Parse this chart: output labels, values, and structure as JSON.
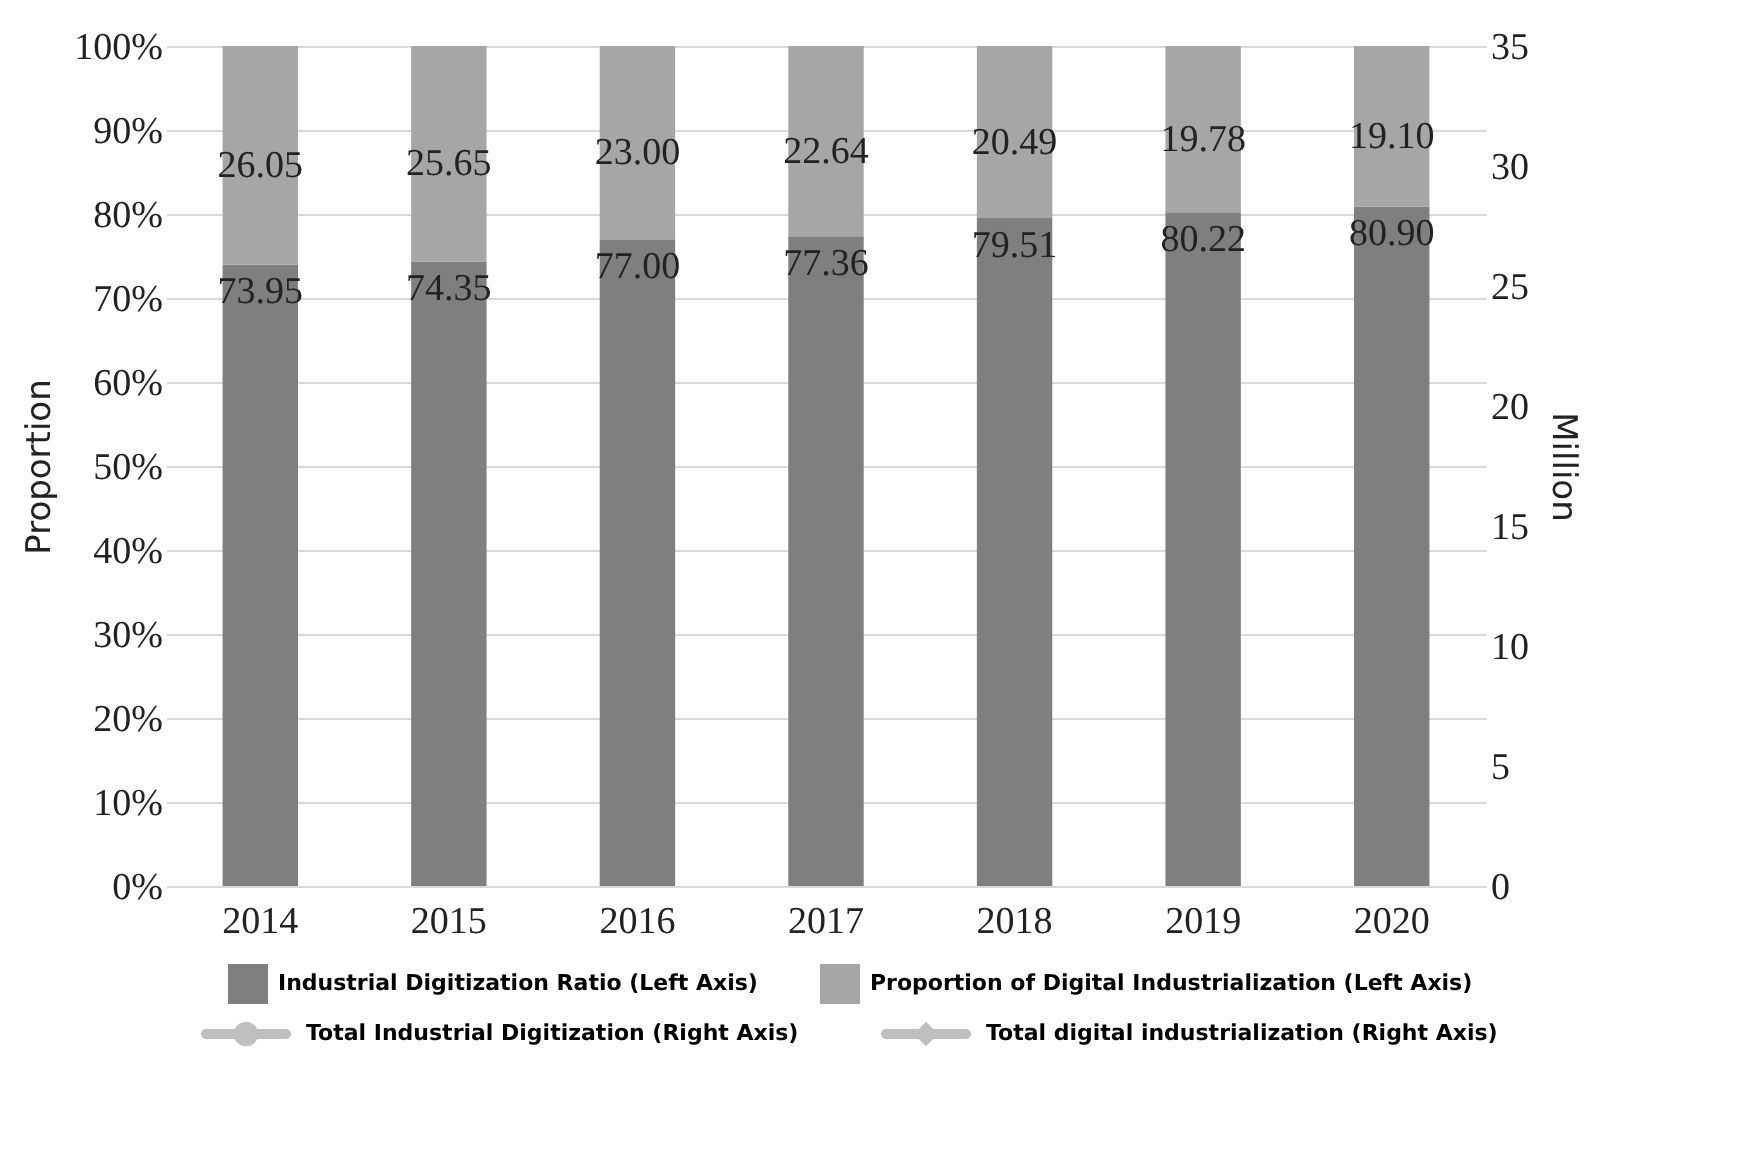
{
  "chart_data": {
    "type": "bar",
    "stacked": true,
    "ylabel": "Proportion",
    "y2label": "Million",
    "categories": [
      "2014",
      "2015",
      "2016",
      "2017",
      "2018",
      "2019",
      "2020"
    ],
    "series": [
      {
        "name": "Industrial Digitization Ratio (Left Axis)",
        "color": "#7f7f7f",
        "values": [
          73.95,
          74.35,
          77.0,
          77.36,
          79.51,
          80.22,
          80.9
        ],
        "value_labels": [
          "73.95",
          "74.35",
          "77.00",
          "77.36",
          "79.51",
          "80.22",
          "80.90"
        ]
      },
      {
        "name": "Proportion of Digital Industrialization (Left Axis)",
        "color": "#a6a6a6",
        "values": [
          26.05,
          25.65,
          23.0,
          22.64,
          20.49,
          19.78,
          19.1
        ],
        "value_labels": [
          "26.05",
          "25.65",
          "23.00",
          "22.64",
          "20.49",
          "19.78",
          "19.10"
        ]
      },
      {
        "name": "Total Industrial Digitization (Right Axis)",
        "type": "line",
        "axis": "y2",
        "color": "#bfbfbf",
        "marker": "circle",
        "values": [
          null,
          null,
          null,
          null,
          null,
          null,
          null
        ]
      },
      {
        "name": "Total digital industrialization (Right Axis)",
        "type": "line",
        "axis": "y2",
        "color": "#bfbfbf",
        "marker": "diamond",
        "values": [
          null,
          null,
          null,
          null,
          null,
          null,
          null
        ]
      }
    ],
    "ylim": [
      0,
      100
    ],
    "yticks": [
      {
        "value": 0,
        "label": "0%"
      },
      {
        "value": 10,
        "label": "10%"
      },
      {
        "value": 20,
        "label": "20%"
      },
      {
        "value": 30,
        "label": "30%"
      },
      {
        "value": 40,
        "label": "40%"
      },
      {
        "value": 50,
        "label": "50%"
      },
      {
        "value": 60,
        "label": "60%"
      },
      {
        "value": 70,
        "label": "70%"
      },
      {
        "value": 80,
        "label": "80%"
      },
      {
        "value": 90,
        "label": "90%"
      },
      {
        "value": 100,
        "label": "100%"
      }
    ],
    "y2lim": [
      0,
      35
    ],
    "y2ticks": [
      0,
      5,
      10,
      15,
      20,
      25,
      30,
      35
    ],
    "grid": "y",
    "legend": "bottom"
  }
}
